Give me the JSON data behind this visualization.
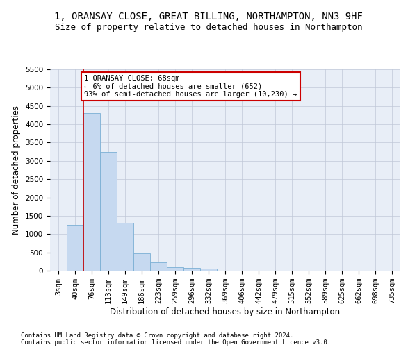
{
  "title1": "1, ORANSAY CLOSE, GREAT BILLING, NORTHAMPTON, NN3 9HF",
  "title2": "Size of property relative to detached houses in Northampton",
  "xlabel": "Distribution of detached houses by size in Northampton",
  "ylabel": "Number of detached properties",
  "categories": [
    "3sqm",
    "40sqm",
    "76sqm",
    "113sqm",
    "149sqm",
    "186sqm",
    "223sqm",
    "259sqm",
    "296sqm",
    "332sqm",
    "369sqm",
    "406sqm",
    "442sqm",
    "479sqm",
    "515sqm",
    "552sqm",
    "589sqm",
    "625sqm",
    "662sqm",
    "698sqm",
    "735sqm"
  ],
  "values": [
    0,
    1250,
    4300,
    3250,
    1300,
    480,
    220,
    100,
    80,
    60,
    0,
    0,
    0,
    0,
    0,
    0,
    0,
    0,
    0,
    0,
    0
  ],
  "bar_color": "#c6d9f0",
  "bar_edge_color": "#7bafd4",
  "marker_color": "#cc0000",
  "annotation_line1": "1 ORANSAY CLOSE: 68sqm",
  "annotation_line2": "← 6% of detached houses are smaller (652)",
  "annotation_line3": "93% of semi-detached houses are larger (10,230) →",
  "annotation_box_color": "#ffffff",
  "annotation_box_edge": "#cc0000",
  "ylim": [
    0,
    5500
  ],
  "yticks": [
    0,
    500,
    1000,
    1500,
    2000,
    2500,
    3000,
    3500,
    4000,
    4500,
    5000,
    5500
  ],
  "footer1": "Contains HM Land Registry data © Crown copyright and database right 2024.",
  "footer2": "Contains public sector information licensed under the Open Government Licence v3.0.",
  "bg_color": "#ffffff",
  "plot_bg_color": "#e8eef7",
  "grid_color": "#c0c8d8",
  "title1_fontsize": 10,
  "title2_fontsize": 9,
  "xlabel_fontsize": 8.5,
  "ylabel_fontsize": 8.5,
  "tick_fontsize": 7.5,
  "annotation_fontsize": 7.5,
  "footer_fontsize": 6.5
}
